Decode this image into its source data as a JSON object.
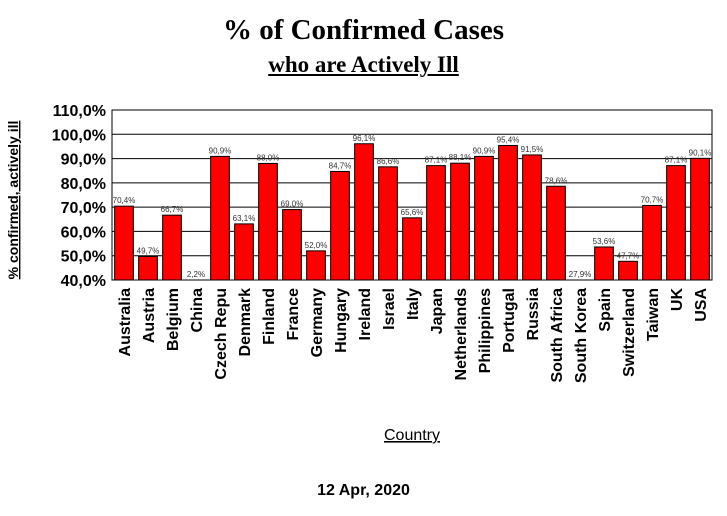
{
  "title": "% of Confirmed Cases",
  "subtitle": "who are Actively Ill",
  "date": "12 Apr, 2020",
  "colors": {
    "bar": "#ff0000",
    "bar_stroke": "#000000",
    "plot_border": "#000000"
  },
  "chart_data": {
    "type": "bar",
    "xlabel": "Country",
    "ylabel": "% confirmed, actively ill",
    "ylim": [
      40,
      110
    ],
    "yticks": [
      40,
      50,
      60,
      70,
      80,
      90,
      100,
      110
    ],
    "ytick_labels": [
      "40,0%",
      "50,0%",
      "60,0%",
      "70,0%",
      "80,0%",
      "90,0%",
      "100,0%",
      "110,0%"
    ],
    "grid": true,
    "categories": [
      "Australia",
      "Austria",
      "Belgium",
      "China",
      "Czech Repu",
      "Denmark",
      "Finland",
      "France",
      "Germany",
      "Hungary",
      "Ireland",
      "Israel",
      "Italy",
      "Japan",
      "Netherlands",
      "Philippines",
      "Portugal",
      "Russia",
      "South Africa",
      "South Korea",
      "Spain",
      "Switzerland",
      "Taiwan",
      "UK",
      "USA"
    ],
    "values": [
      70.4,
      49.7,
      66.7,
      2.2,
      90.9,
      63.1,
      88.0,
      69.0,
      52.0,
      84.7,
      96.1,
      86.6,
      65.6,
      87.1,
      88.1,
      90.9,
      95.4,
      91.5,
      78.6,
      27.9,
      53.6,
      47.7,
      70.7,
      87.1,
      90.1
    ],
    "data_labels": [
      "70,4%",
      "49,7%",
      "66,7%",
      "2,2%",
      "90,9%",
      "63,1%",
      "88,0%",
      "69,0%",
      "52,0%",
      "84,7%",
      "96,1%",
      "86,6%",
      "65,6%",
      "87,1%",
      "88,1%",
      "90,9%",
      "95,4%",
      "91,5%",
      "78,6%",
      "27,9%",
      "53,6%",
      "47,7%",
      "70,7%",
      "87,1%",
      "90,1%"
    ]
  }
}
